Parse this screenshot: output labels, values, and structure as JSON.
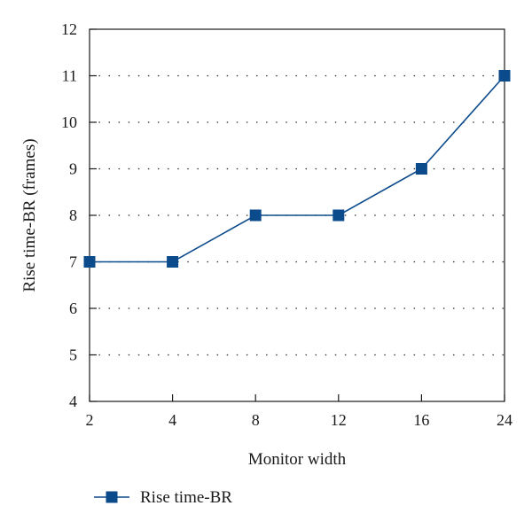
{
  "chart_data": {
    "type": "line",
    "title": "",
    "xlabel": "Monitor width",
    "ylabel": "Rise time-BR (frames)",
    "categories": [
      "2",
      "4",
      "8",
      "12",
      "16",
      "24"
    ],
    "series": [
      {
        "name": "Rise time-BR",
        "values": [
          7,
          7,
          8,
          8,
          9,
          11
        ],
        "color": "#0b4a8b",
        "marker": "square"
      }
    ],
    "ylim": [
      4,
      12
    ],
    "yticks": [
      4,
      5,
      6,
      7,
      8,
      9,
      10,
      11,
      12
    ],
    "grid": "horizontal-dotted",
    "legend_position": "bottom-left"
  }
}
